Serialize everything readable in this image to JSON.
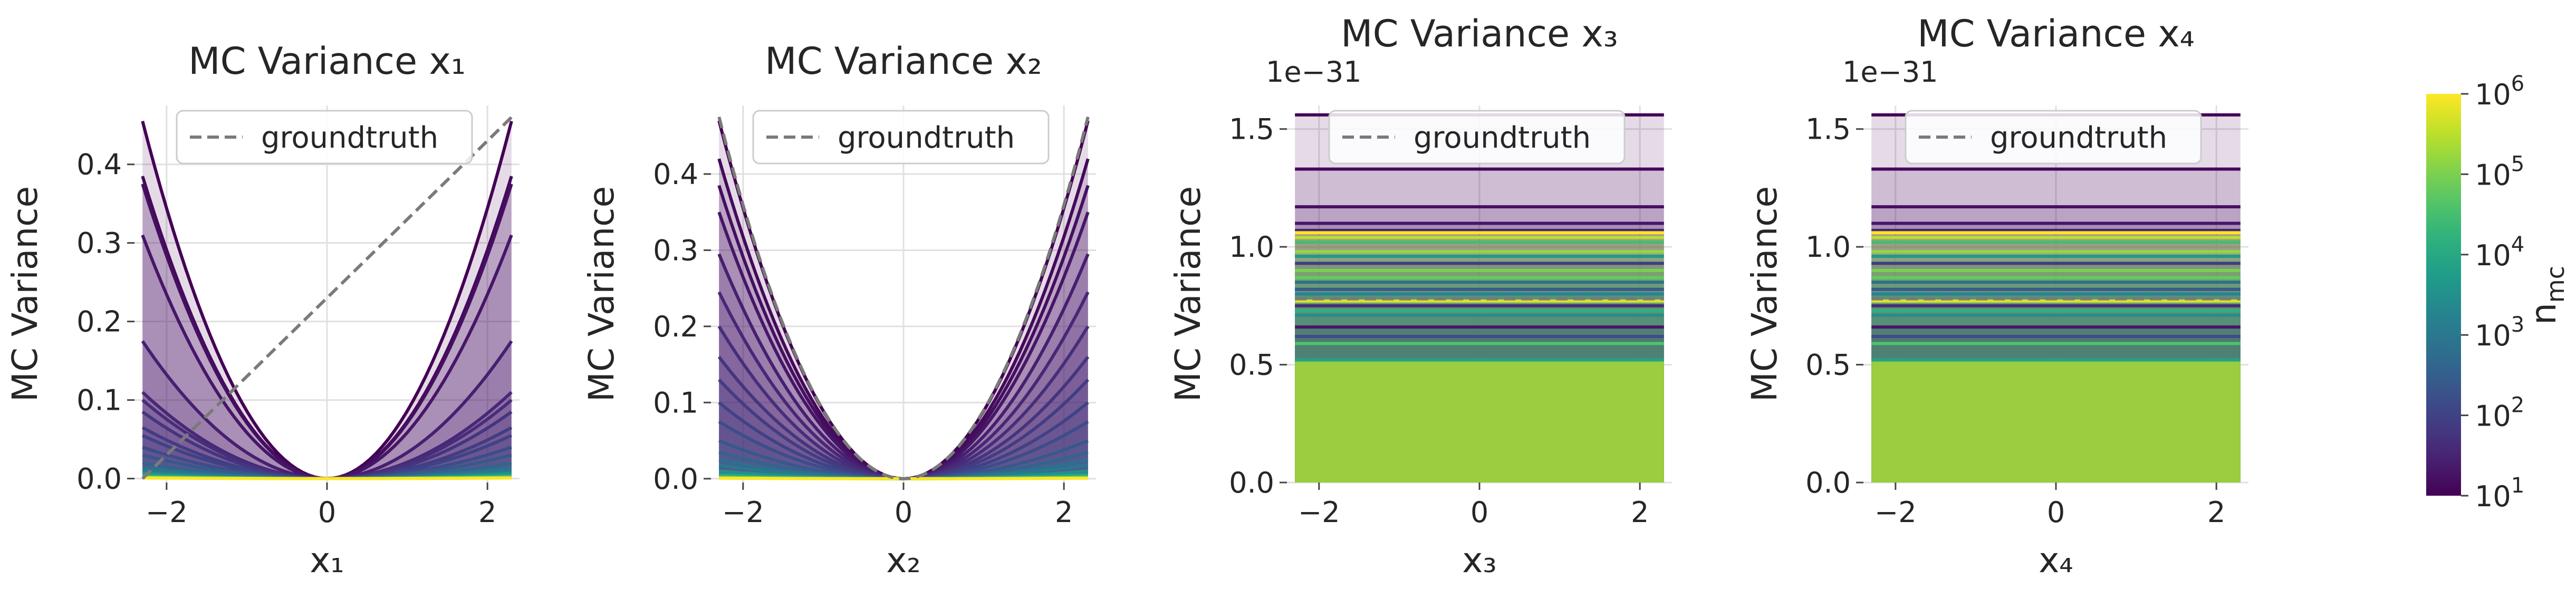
{
  "figure": {
    "legend_label": "groundtruth",
    "palette": [
      "#440154",
      "#482878",
      "#3e4989",
      "#31688e",
      "#26828e",
      "#1f9e89",
      "#35b779",
      "#6ece58",
      "#b5de2b",
      "#fde725"
    ],
    "groundtruth_color": "#7a7a7a",
    "grid_color": "#e0e0e0"
  },
  "chart_data": [
    {
      "type": "line",
      "title": "MC Variance x₁",
      "xlabel": "x₁",
      "ylabel": "MC Variance",
      "offset_text": "",
      "xlim": [
        -2.4,
        2.4
      ],
      "ylim": [
        -0.005,
        0.475
      ],
      "xticks": [
        -2,
        0,
        2
      ],
      "xtick_labels": [
        "−2",
        "0",
        "2"
      ],
      "yticks": [
        0.0,
        0.1,
        0.2,
        0.3,
        0.4
      ],
      "ytick_labels": [
        "0.0",
        "0.1",
        "0.2",
        "0.3",
        "0.4"
      ],
      "x_range": [
        -2.3,
        2.3
      ],
      "mc_shape": "quadratic",
      "groundtruth": {
        "shape": "linear",
        "x": [
          -2.3,
          2.3
        ],
        "y": [
          0.0,
          0.46
        ]
      },
      "series": [
        {
          "n_mc": 10,
          "value_at_edge": 0.455
        },
        {
          "n_mc": 13,
          "value_at_edge": 0.385
        },
        {
          "n_mc": 16,
          "value_at_edge": 0.375
        },
        {
          "n_mc": 20,
          "value_at_edge": 0.31
        },
        {
          "n_mc": 27,
          "value_at_edge": 0.175
        },
        {
          "n_mc": 35,
          "value_at_edge": 0.11
        },
        {
          "n_mc": 45,
          "value_at_edge": 0.1
        },
        {
          "n_mc": 60,
          "value_at_edge": 0.085
        },
        {
          "n_mc": 80,
          "value_at_edge": 0.065
        },
        {
          "n_mc": 100,
          "value_at_edge": 0.055
        },
        {
          "n_mc": 150,
          "value_at_edge": 0.04
        },
        {
          "n_mc": 250,
          "value_at_edge": 0.03
        },
        {
          "n_mc": 400,
          "value_at_edge": 0.02
        },
        {
          "n_mc": 700,
          "value_at_edge": 0.014
        },
        {
          "n_mc": 1000,
          "value_at_edge": 0.011
        },
        {
          "n_mc": 3000,
          "value_at_edge": 0.007
        },
        {
          "n_mc": 10000,
          "value_at_edge": 0.004
        },
        {
          "n_mc": 50000,
          "value_at_edge": 0.002
        },
        {
          "n_mc": 1000000,
          "value_at_edge": 0.0008
        }
      ]
    },
    {
      "type": "line",
      "title": "MC Variance x₂",
      "xlabel": "x₂",
      "ylabel": "MC Variance",
      "offset_text": "",
      "xlim": [
        -2.4,
        2.4
      ],
      "ylim": [
        -0.005,
        0.49
      ],
      "xticks": [
        -2,
        0,
        2
      ],
      "xtick_labels": [
        "−2",
        "0",
        "2"
      ],
      "yticks": [
        0.0,
        0.1,
        0.2,
        0.3,
        0.4
      ],
      "ytick_labels": [
        "0.0",
        "0.1",
        "0.2",
        "0.3",
        "0.4"
      ],
      "x_range": [
        -2.3,
        2.3
      ],
      "mc_shape": "quadratic",
      "groundtruth": {
        "shape": "quadratic",
        "value_at_edge": 0.475
      },
      "series": [
        {
          "n_mc": 10,
          "value_at_edge": 0.47
        },
        {
          "n_mc": 13,
          "value_at_edge": 0.42
        },
        {
          "n_mc": 16,
          "value_at_edge": 0.385
        },
        {
          "n_mc": 20,
          "value_at_edge": 0.35
        },
        {
          "n_mc": 27,
          "value_at_edge": 0.295
        },
        {
          "n_mc": 35,
          "value_at_edge": 0.245
        },
        {
          "n_mc": 45,
          "value_at_edge": 0.2
        },
        {
          "n_mc": 60,
          "value_at_edge": 0.16
        },
        {
          "n_mc": 80,
          "value_at_edge": 0.13
        },
        {
          "n_mc": 100,
          "value_at_edge": 0.1
        },
        {
          "n_mc": 150,
          "value_at_edge": 0.075
        },
        {
          "n_mc": 250,
          "value_at_edge": 0.05
        },
        {
          "n_mc": 400,
          "value_at_edge": 0.035
        },
        {
          "n_mc": 700,
          "value_at_edge": 0.025
        },
        {
          "n_mc": 1000,
          "value_at_edge": 0.018
        },
        {
          "n_mc": 3000,
          "value_at_edge": 0.01
        },
        {
          "n_mc": 10000,
          "value_at_edge": 0.005
        },
        {
          "n_mc": 50000,
          "value_at_edge": 0.002
        },
        {
          "n_mc": 1000000,
          "value_at_edge": 0.0007
        }
      ]
    },
    {
      "type": "line",
      "title": "MC Variance x₃",
      "xlabel": "x₃",
      "ylabel": "MC Variance",
      "offset_text": "1e−31",
      "xlim": [
        -2.4,
        2.4
      ],
      "ylim": [
        0.0,
        1.6
      ],
      "xticks": [
        -2,
        0,
        2
      ],
      "xtick_labels": [
        "−2",
        "0",
        "2"
      ],
      "yticks": [
        0.0,
        0.5,
        1.0,
        1.5
      ],
      "ytick_labels": [
        "0.0",
        "0.5",
        "1.0",
        "1.5"
      ],
      "x_range": [
        -2.3,
        2.3
      ],
      "mc_shape": "constant",
      "groundtruth": {
        "shape": "constant",
        "value": 0.78
      },
      "series": [
        {
          "n_mc": 10,
          "value": 1.56
        },
        {
          "n_mc": 13,
          "value": 1.33
        },
        {
          "n_mc": 16,
          "value": 1.17
        },
        {
          "n_mc": 20,
          "value": 1.1
        },
        {
          "n_mc": 35,
          "value": 1.07
        },
        {
          "n_mc": 1000000,
          "value": 1.06
        },
        {
          "n_mc": 300000,
          "value": 1.04
        },
        {
          "n_mc": 30000,
          "value": 1.02
        },
        {
          "n_mc": 150000,
          "value": 0.98
        },
        {
          "n_mc": 5000,
          "value": 0.96
        },
        {
          "n_mc": 80,
          "value": 0.93
        },
        {
          "n_mc": 100000,
          "value": 0.9
        },
        {
          "n_mc": 60000,
          "value": 0.87
        },
        {
          "n_mc": 700,
          "value": 0.85
        },
        {
          "n_mc": 250,
          "value": 0.82
        },
        {
          "n_mc": 2000,
          "value": 0.8
        },
        {
          "n_mc": 500000,
          "value": 0.77
        },
        {
          "n_mc": 45,
          "value": 0.75
        },
        {
          "n_mc": 15000,
          "value": 0.73
        },
        {
          "n_mc": 3000,
          "value": 0.71
        },
        {
          "n_mc": 20,
          "value": 0.66
        },
        {
          "n_mc": 150,
          "value": 0.62
        },
        {
          "n_mc": 40000,
          "value": 0.59
        },
        {
          "n_mc": 8000,
          "value": 0.52
        }
      ]
    },
    {
      "type": "line",
      "title": "MC Variance x₄",
      "xlabel": "x₄",
      "ylabel": "MC Variance",
      "offset_text": "1e−31",
      "xlim": [
        -2.4,
        2.4
      ],
      "ylim": [
        0.0,
        1.6
      ],
      "xticks": [
        -2,
        0,
        2
      ],
      "xtick_labels": [
        "−2",
        "0",
        "2"
      ],
      "yticks": [
        0.0,
        0.5,
        1.0,
        1.5
      ],
      "ytick_labels": [
        "0.0",
        "0.5",
        "1.0",
        "1.5"
      ],
      "x_range": [
        -2.3,
        2.3
      ],
      "mc_shape": "constant",
      "groundtruth": {
        "shape": "constant",
        "value": 0.78
      },
      "series": [
        {
          "n_mc": 10,
          "value": 1.56
        },
        {
          "n_mc": 13,
          "value": 1.33
        },
        {
          "n_mc": 16,
          "value": 1.17
        },
        {
          "n_mc": 20,
          "value": 1.1
        },
        {
          "n_mc": 35,
          "value": 1.07
        },
        {
          "n_mc": 1000000,
          "value": 1.06
        },
        {
          "n_mc": 300000,
          "value": 1.04
        },
        {
          "n_mc": 30000,
          "value": 1.02
        },
        {
          "n_mc": 150000,
          "value": 0.98
        },
        {
          "n_mc": 5000,
          "value": 0.96
        },
        {
          "n_mc": 80,
          "value": 0.93
        },
        {
          "n_mc": 100000,
          "value": 0.9
        },
        {
          "n_mc": 60000,
          "value": 0.87
        },
        {
          "n_mc": 700,
          "value": 0.85
        },
        {
          "n_mc": 250,
          "value": 0.82
        },
        {
          "n_mc": 2000,
          "value": 0.8
        },
        {
          "n_mc": 500000,
          "value": 0.77
        },
        {
          "n_mc": 45,
          "value": 0.75
        },
        {
          "n_mc": 15000,
          "value": 0.73
        },
        {
          "n_mc": 3000,
          "value": 0.71
        },
        {
          "n_mc": 20,
          "value": 0.66
        },
        {
          "n_mc": 150,
          "value": 0.62
        },
        {
          "n_mc": 40000,
          "value": 0.59
        },
        {
          "n_mc": 8000,
          "value": 0.52
        }
      ]
    }
  ],
  "colorbar": {
    "label": "n_mc",
    "scale": "log",
    "range": [
      10,
      1000000
    ],
    "tick_values": [
      10,
      100,
      1000,
      10000,
      100000,
      1000000
    ],
    "tick_exponents": [
      "1",
      "2",
      "3",
      "4",
      "5",
      "6"
    ],
    "tick_base": "10"
  }
}
